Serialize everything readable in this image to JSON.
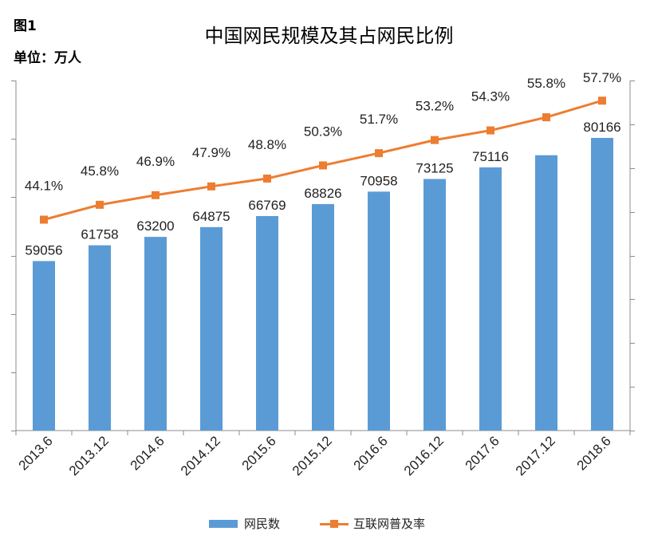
{
  "figure_label": "图1",
  "unit_label": "单位：万人",
  "chart_data": {
    "type": "bar+line",
    "title": "中国网民规模及其占网民比例",
    "categories": [
      "2013.6",
      "2013.12",
      "2014.6",
      "2014.12",
      "2015.6",
      "2015.12",
      "2016.6",
      "2016.12",
      "2017.6",
      "2017.12",
      "2018.6"
    ],
    "series": [
      {
        "name": "网民数",
        "type": "bar",
        "axis": "left",
        "values": [
          59056,
          61758,
          63200,
          64875,
          66769,
          68826,
          70958,
          73125,
          75116,
          77198,
          80166
        ],
        "labels": [
          "59056",
          "61758",
          "63200",
          "64875",
          "66769",
          "68826",
          "70958",
          "73125",
          "75116",
          "",
          "80166"
        ]
      },
      {
        "name": "互联网普及率",
        "type": "line",
        "axis": "right",
        "values": [
          44.1,
          45.8,
          46.9,
          47.9,
          48.8,
          50.3,
          51.7,
          53.2,
          54.3,
          55.8,
          57.7
        ],
        "labels": [
          "44.1%",
          "45.8%",
          "46.9%",
          "47.9%",
          "48.8%",
          "50.3%",
          "51.7%",
          "53.2%",
          "54.3%",
          "55.8%",
          "57.7%"
        ]
      }
    ],
    "left_axis": {
      "range": [
        30000,
        90000
      ],
      "step": 10000,
      "tick_labels_shown": false
    },
    "right_axis": {
      "range": [
        20,
        60
      ],
      "step": 5,
      "tick_labels_shown": false
    },
    "grid": false,
    "legend": "bottom",
    "colors": {
      "bar": "#5b9bd5",
      "line": "#ed7d31"
    }
  }
}
